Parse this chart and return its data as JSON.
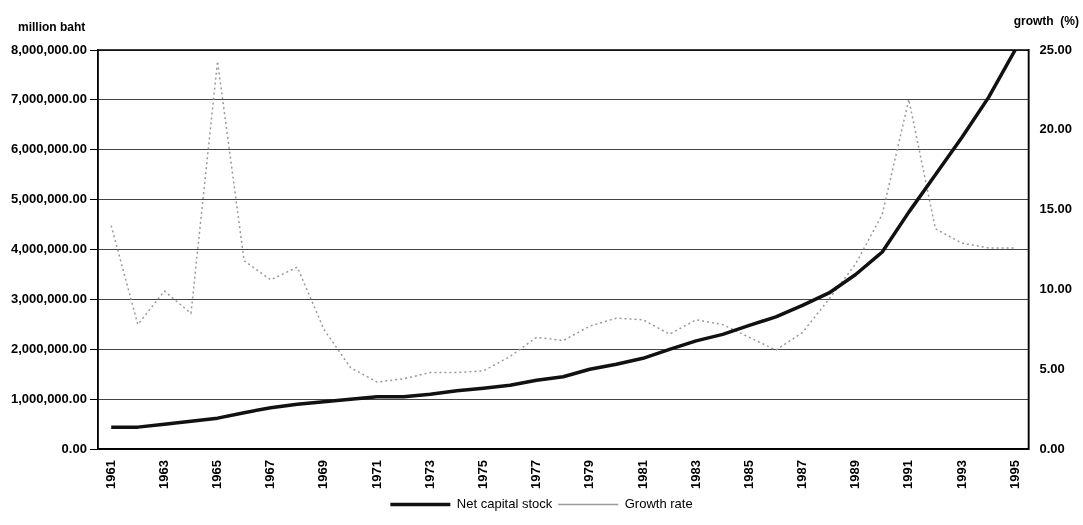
{
  "chart_data": {
    "type": "line",
    "ylabel": "million baht",
    "y2label": "growth  (%)",
    "categories": [
      "1961",
      null,
      "1963",
      null,
      "1965",
      null,
      "1967",
      null,
      "1969",
      null,
      "1971",
      null,
      "1973",
      null,
      "1975",
      null,
      "1977",
      null,
      "1979",
      null,
      "1981",
      null,
      "1983",
      null,
      "1985",
      null,
      "1987",
      null,
      "1989",
      null,
      "1991",
      null,
      "1993",
      null,
      "1995"
    ],
    "series": [
      {
        "name": "Net capital stock",
        "color": "#111111",
        "line_style": "solid",
        "values": [
          440000,
          440000,
          500000,
          560000,
          620000,
          730000,
          830000,
          900000,
          950000,
          1000000,
          1050000,
          1050000,
          1100000,
          1170000,
          1220000,
          1280000,
          1380000,
          1450000,
          1600000,
          1700000,
          1820000,
          2000000,
          2170000,
          2300000,
          2480000,
          2650000,
          2880000,
          3130000,
          3500000,
          3950000,
          4750000,
          5500000,
          6250000,
          7050000,
          8000000
        ]
      },
      {
        "name": "Growth rate",
        "color": "#999999",
        "line_style": "dotted",
        "axis": "y2",
        "values": [
          14.0,
          7.8,
          9.9,
          8.5,
          24.3,
          11.8,
          10.6,
          11.4,
          7.5,
          5.1,
          4.2,
          4.4,
          4.8,
          4.8,
          4.9,
          5.8,
          7.0,
          6.8,
          7.7,
          8.2,
          8.1,
          7.2,
          8.1,
          7.8,
          7.0,
          6.2,
          7.3,
          9.4,
          11.6,
          14.7,
          21.9,
          13.8,
          12.9,
          12.6,
          12.6
        ]
      }
    ],
    "ylim": [
      0,
      8000000
    ],
    "yticks": [
      {
        "value": 0,
        "label": "0.00"
      },
      {
        "value": 1000000,
        "label": "1,000,000.00"
      },
      {
        "value": 2000000,
        "label": "2,000,000.00"
      },
      {
        "value": 3000000,
        "label": "3,000,000.00"
      },
      {
        "value": 4000000,
        "label": "4,000,000.00"
      },
      {
        "value": 5000000,
        "label": "5,000,000.00"
      },
      {
        "value": 6000000,
        "label": "6,000,000.00"
      },
      {
        "value": 7000000,
        "label": "7,000,000.00"
      },
      {
        "value": 8000000,
        "label": "8,000,000.00"
      }
    ],
    "y2lim": [
      0,
      25
    ],
    "y2ticks": [
      {
        "value": 0,
        "label": "0.00"
      },
      {
        "value": 5,
        "label": "5.00"
      },
      {
        "value": 10,
        "label": "10.00"
      },
      {
        "value": 15,
        "label": "15.00"
      },
      {
        "value": 20,
        "label": "20.00"
      },
      {
        "value": 25,
        "label": "25.00"
      }
    ],
    "grid": "y",
    "legend": "bottom",
    "marker": "none"
  }
}
